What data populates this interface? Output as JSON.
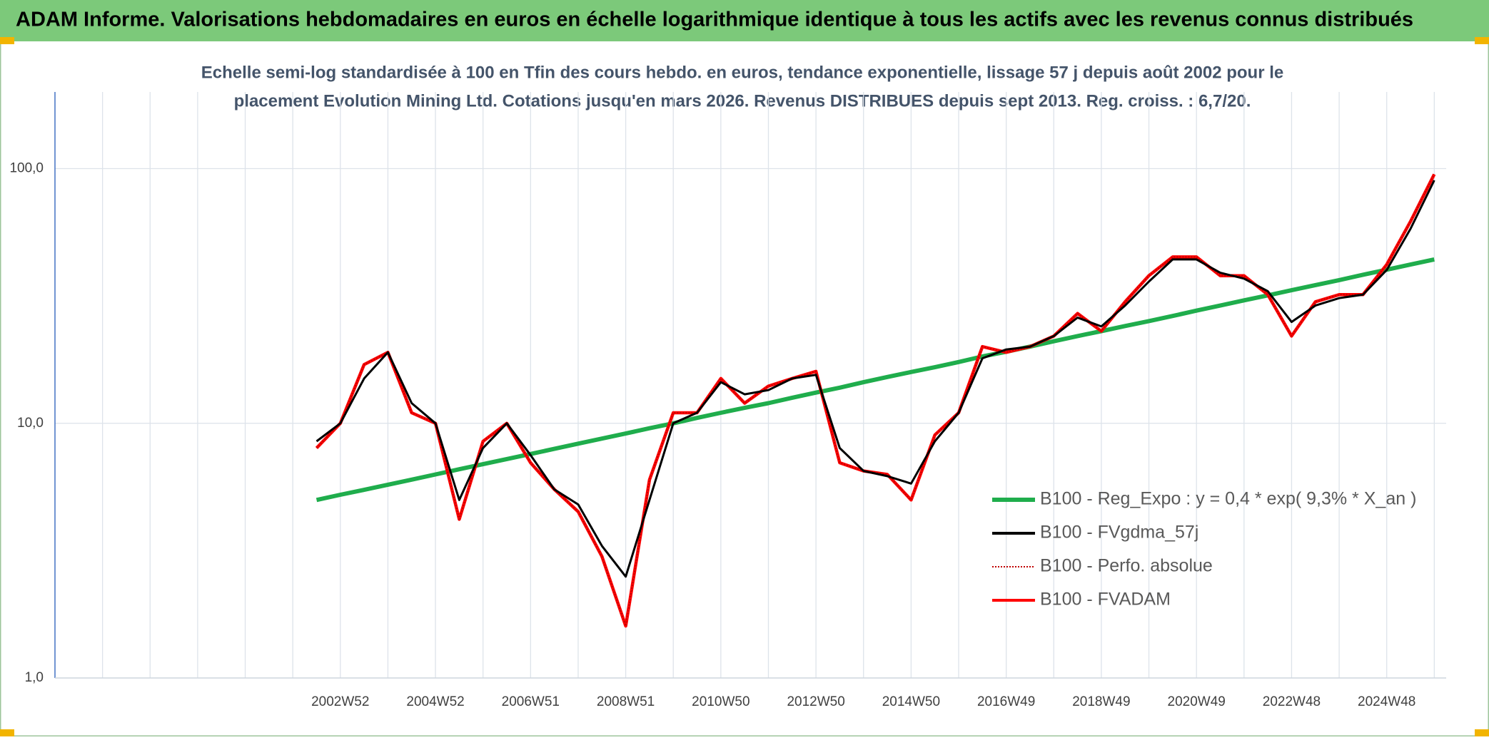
{
  "chart_data": {
    "type": "line",
    "title": "ADAM Informe. Valorisations hebdomadaires en euros en échelle logarithmique identique à tous les actifs avec les revenus connus distribués",
    "subtitle": [
      "Echelle semi-log standardisée à 100 en Tfin des cours hebdo. en euros, tendance exponentielle, lissage 57 j depuis août 2002 pour le",
      "placement Evolution Mining Ltd. Cotations jusqu'en mars 2026. Revenus DISTRIBUES depuis sept 2013. Reg. croiss. : 6,7/20."
    ],
    "categories": [
      null,
      null,
      null,
      null,
      null,
      null,
      null,
      null,
      null,
      null,
      null,
      null,
      "2002W52",
      null,
      null,
      null,
      "2004W52",
      null,
      null,
      null,
      "2006W51",
      null,
      null,
      null,
      "2008W51",
      null,
      null,
      null,
      "2010W50",
      null,
      null,
      null,
      "2012W50",
      null,
      null,
      null,
      "2014W50",
      null,
      null,
      null,
      "2016W49",
      null,
      null,
      null,
      "2018W49",
      null,
      null,
      null,
      "2020W49",
      null,
      null,
      null,
      "2022W48",
      null,
      null,
      null,
      "2024W48",
      null,
      null
    ],
    "log_scale": true,
    "ylim": [
      1,
      200
    ],
    "yticks": [
      {
        "value": 1,
        "label": "1,0"
      },
      {
        "value": 10,
        "label": "10,0"
      },
      {
        "value": 100,
        "label": "100,0"
      }
    ],
    "grid": true,
    "legend": "lower right",
    "series": [
      {
        "name": "B100 - Reg_Expo : y = 0,4 * exp( 9,3% *  X_an )",
        "color": "#1fad4c",
        "style": "solid",
        "values": [
          null,
          null,
          null,
          null,
          null,
          null,
          null,
          null,
          null,
          null,
          null,
          5.0,
          5.24,
          5.48,
          5.74,
          6.01,
          6.3,
          6.6,
          6.91,
          7.24,
          7.58,
          7.94,
          8.32,
          8.71,
          9.12,
          9.56,
          10.0,
          10.5,
          11.0,
          11.5,
          12.0,
          12.6,
          13.2,
          13.8,
          14.5,
          15.2,
          15.9,
          16.6,
          17.4,
          18.3,
          19.1,
          20.0,
          21.0,
          22.0,
          23.0,
          24.1,
          25.2,
          26.4,
          27.7,
          29.0,
          30.4,
          31.8,
          33.3,
          34.9,
          36.5,
          38.3,
          40.1,
          42.0,
          44.0
        ]
      },
      {
        "name": "B100 - FVgdma_57j",
        "color": "#000000",
        "style": "solid",
        "values": [
          null,
          null,
          null,
          null,
          null,
          null,
          null,
          null,
          null,
          null,
          null,
          8.5,
          10,
          15,
          19,
          12,
          10,
          5,
          8,
          10,
          7.5,
          5.5,
          4.8,
          3.3,
          2.5,
          5,
          10,
          11,
          14.5,
          13,
          13.5,
          15,
          15.5,
          8,
          6.5,
          6.2,
          5.8,
          8.5,
          11,
          18,
          19.5,
          20,
          22,
          26,
          24,
          29,
          36,
          44,
          44,
          39,
          37,
          33,
          25,
          29,
          31,
          32,
          40,
          58,
          90
        ]
      },
      {
        "name": "B100 - Perfo. absolue",
        "color": "#c00000",
        "style": "dotted",
        "values": [
          null,
          null,
          null,
          null,
          null,
          null,
          null,
          null,
          null,
          null,
          null,
          8,
          10,
          17,
          19,
          11,
          10,
          4.2,
          8.5,
          10,
          7,
          5.5,
          4.5,
          3,
          1.6,
          6,
          11,
          11,
          15,
          12,
          14,
          15,
          16,
          7,
          6.5,
          6.3,
          5,
          9,
          11,
          20,
          19,
          20,
          22,
          27,
          23,
          30,
          38,
          45,
          45,
          38,
          38,
          32,
          22,
          30,
          32,
          32,
          42,
          62,
          95
        ]
      },
      {
        "name": "B100 - FVADAM",
        "color": "#ff0000",
        "style": "solid",
        "values": [
          null,
          null,
          null,
          null,
          null,
          null,
          null,
          null,
          null,
          null,
          null,
          8,
          10,
          17,
          19,
          11,
          10,
          4.2,
          8.5,
          10,
          7,
          5.5,
          4.5,
          3,
          1.6,
          6,
          11,
          11,
          15,
          12,
          14,
          15,
          16,
          7,
          6.5,
          6.3,
          5,
          9,
          11,
          20,
          19,
          20,
          22,
          27,
          23,
          30,
          38,
          45,
          45,
          38,
          38,
          32,
          22,
          30,
          32,
          32,
          42,
          62,
          95
        ]
      }
    ]
  }
}
